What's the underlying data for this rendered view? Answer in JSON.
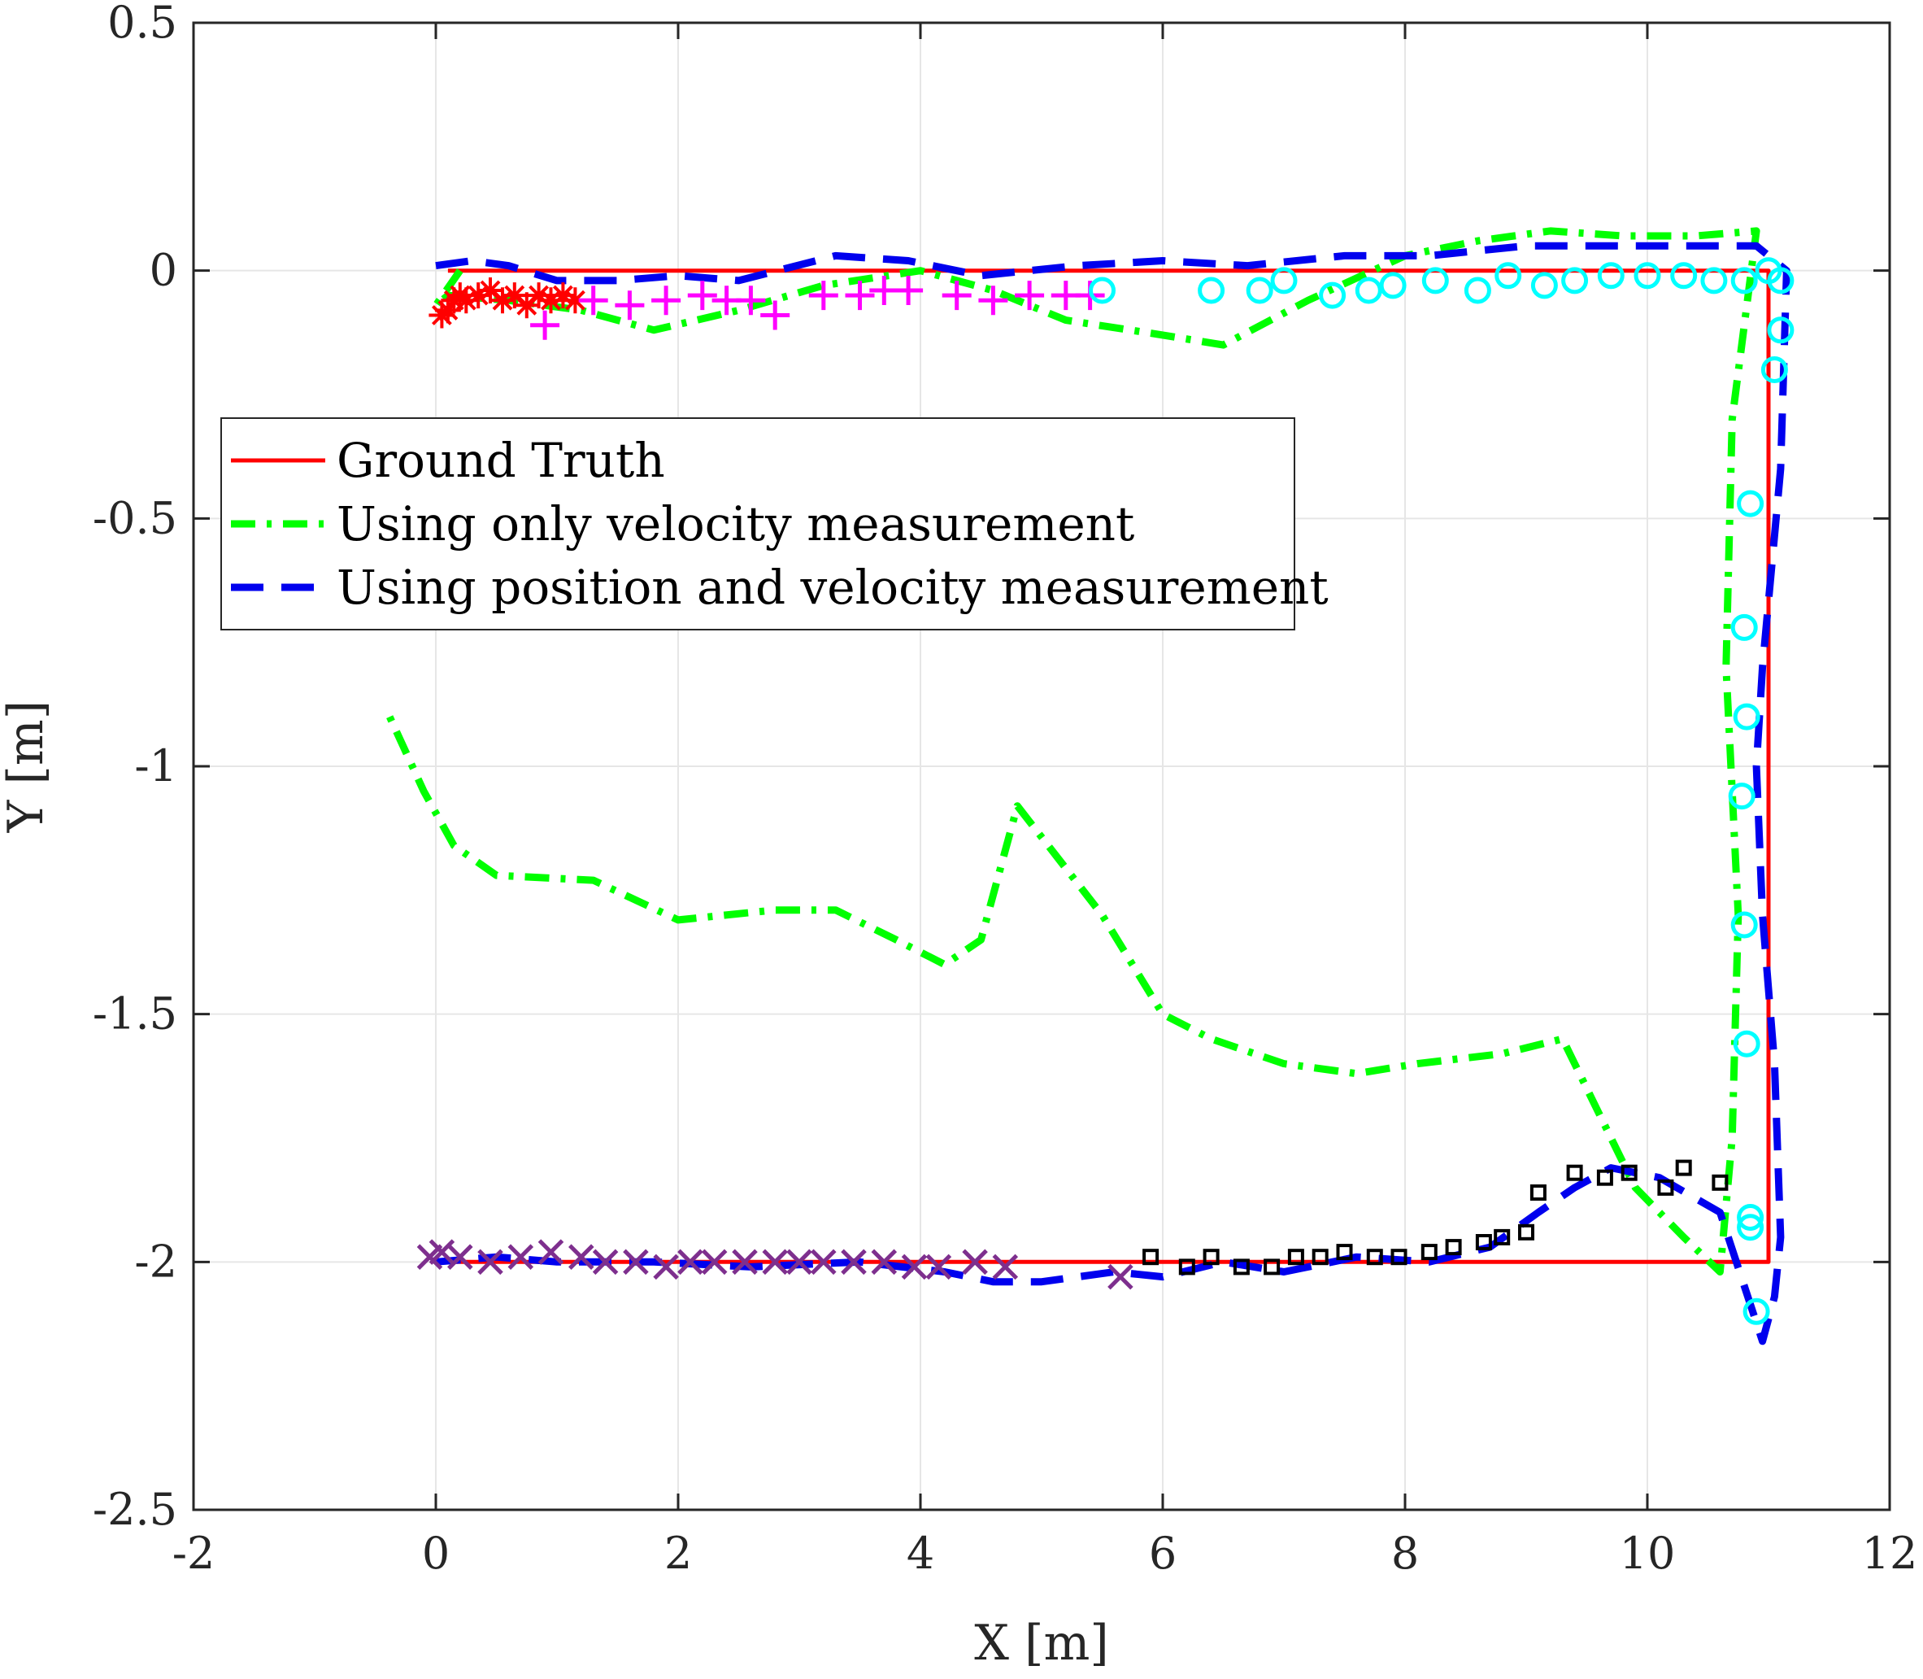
{
  "chart_data": {
    "type": "line",
    "title": "",
    "xlabel": "X [m]",
    "ylabel": "Y [m]",
    "xlim": [
      -2,
      12
    ],
    "ylim": [
      -2.5,
      0.5
    ],
    "xticks": [
      -2,
      0,
      2,
      4,
      6,
      8,
      10,
      12
    ],
    "yticks": [
      -2.5,
      -2,
      -1.5,
      -1,
      -0.5,
      0,
      0.5
    ],
    "xtick_labels": [
      "-2",
      "0",
      "2",
      "4",
      "6",
      "8",
      "10",
      "12"
    ],
    "ytick_labels": [
      "-2.5",
      "-2",
      "-1.5",
      "-1",
      "-0.5",
      "0",
      "0.5"
    ],
    "grid": true,
    "legend_position": "upper-left",
    "series": [
      {
        "name": "Ground Truth",
        "color": "#ff0000",
        "style": "solid",
        "x": [
          0.1,
          11.0,
          11.0,
          4.7,
          0.1
        ],
        "y": [
          0.0,
          0.0,
          -2.0,
          -2.0,
          -2.0
        ]
      },
      {
        "name": "Using only velocity measurement",
        "color": "#00ff00",
        "style": "dashdot",
        "x": [
          0.2,
          0.0,
          0.1,
          0.6,
          1.2,
          1.8,
          2.5,
          3.2,
          4.0,
          4.6,
          5.2,
          6.0,
          6.5,
          7.2,
          8.0,
          8.6,
          9.2,
          9.8,
          10.4,
          10.9,
          10.7,
          10.65,
          10.75,
          10.7,
          10.6,
          10.3,
          9.9,
          9.3,
          8.8,
          8.1,
          7.6,
          7.0,
          6.4,
          6.0,
          5.5,
          4.8,
          4.5,
          4.2,
          3.8,
          3.3,
          2.8,
          2.0,
          1.3,
          0.5,
          0.15,
          -0.1,
          -0.4
        ],
        "y": [
          0.0,
          -0.07,
          -0.05,
          -0.06,
          -0.08,
          -0.12,
          -0.08,
          -0.03,
          0.0,
          -0.04,
          -0.1,
          -0.13,
          -0.15,
          -0.06,
          0.03,
          0.06,
          0.08,
          0.07,
          0.07,
          0.08,
          -0.3,
          -0.8,
          -1.3,
          -1.75,
          -2.02,
          -1.95,
          -1.85,
          -1.55,
          -1.58,
          -1.6,
          -1.62,
          -1.6,
          -1.55,
          -1.5,
          -1.3,
          -1.08,
          -1.35,
          -1.4,
          -1.35,
          -1.29,
          -1.29,
          -1.31,
          -1.23,
          -1.22,
          -1.16,
          -1.05,
          -0.89
        ]
      },
      {
        "name": "Using position and velocity measurement",
        "color": "#0000ee",
        "style": "dashed",
        "x": [
          0.0,
          0.3,
          0.6,
          1.0,
          1.5,
          2.0,
          2.5,
          3.3,
          3.9,
          4.5,
          5.3,
          6.0,
          6.7,
          7.5,
          8.2,
          9.0,
          9.7,
          10.3,
          10.9,
          11.15,
          11.1,
          10.95,
          10.9,
          10.95,
          11.05,
          11.1,
          11.05,
          10.95,
          10.6,
          10.1,
          9.7,
          9.4,
          9.1,
          8.7,
          8.2,
          7.6,
          7.0,
          6.5,
          6.0,
          5.6,
          5.0,
          4.6,
          4.2,
          3.5,
          2.6,
          1.8,
          1.0,
          0.5,
          0.0
        ],
        "y": [
          0.01,
          0.02,
          0.01,
          -0.02,
          -0.02,
          -0.01,
          -0.02,
          0.03,
          0.02,
          -0.01,
          0.01,
          0.02,
          0.01,
          0.03,
          0.03,
          0.05,
          0.05,
          0.05,
          0.05,
          0.0,
          -0.4,
          -0.8,
          -1.0,
          -1.3,
          -1.6,
          -1.95,
          -2.07,
          -2.16,
          -1.9,
          -1.83,
          -1.81,
          -1.85,
          -1.9,
          -1.97,
          -2.0,
          -1.99,
          -2.02,
          -2.0,
          -2.03,
          -2.02,
          -2.04,
          -2.04,
          -2.02,
          -2.0,
          -2.01,
          -2.0,
          -2.0,
          -1.99,
          -2.0
        ]
      },
      {
        "name": "",
        "color": "#ff0000",
        "marker": "asterisk",
        "x": [
          0.05,
          0.1,
          0.15,
          0.2,
          0.25,
          0.35,
          0.45,
          0.55,
          0.65,
          0.75,
          0.85,
          0.95,
          1.05,
          1.15
        ],
        "y": [
          -0.09,
          -0.08,
          -0.06,
          -0.05,
          -0.06,
          -0.05,
          -0.04,
          -0.06,
          -0.05,
          -0.07,
          -0.05,
          -0.06,
          -0.05,
          -0.06
        ]
      },
      {
        "name": "",
        "color": "#ff00ff",
        "marker": "plus",
        "x": [
          0.9,
          1.3,
          1.6,
          1.9,
          2.2,
          2.4,
          2.6,
          2.8,
          3.2,
          3.5,
          3.7,
          3.9,
          4.3,
          4.6,
          4.9,
          5.2,
          5.4
        ],
        "y": [
          -0.11,
          -0.06,
          -0.07,
          -0.06,
          -0.05,
          -0.06,
          -0.06,
          -0.09,
          -0.05,
          -0.05,
          -0.04,
          -0.04,
          -0.05,
          -0.06,
          -0.05,
          -0.05,
          -0.05
        ]
      },
      {
        "name": "",
        "color": "#00ffff",
        "marker": "circle",
        "x": [
          5.5,
          6.4,
          6.8,
          7.0,
          7.4,
          7.7,
          7.9,
          8.25,
          8.6,
          8.85,
          9.15,
          9.4,
          9.7,
          10.0,
          10.3,
          10.55,
          10.8,
          11.0,
          11.1,
          11.05,
          11.1,
          10.85,
          10.8,
          10.82,
          10.78,
          10.8,
          10.82,
          10.85,
          10.85,
          10.9
        ],
        "y": [
          -0.04,
          -0.04,
          -0.04,
          -0.02,
          -0.05,
          -0.04,
          -0.03,
          -0.02,
          -0.04,
          -0.01,
          -0.03,
          -0.02,
          -0.01,
          -0.01,
          -0.01,
          -0.02,
          -0.02,
          0.0,
          -0.02,
          -0.2,
          -0.12,
          -0.47,
          -0.72,
          -0.9,
          -1.06,
          -1.32,
          -1.56,
          -1.91,
          -1.93,
          -2.1
        ]
      },
      {
        "name": "",
        "color": "#000000",
        "marker": "square",
        "x": [
          5.9,
          6.2,
          6.4,
          6.65,
          6.9,
          7.1,
          7.3,
          7.5,
          7.75,
          7.95,
          8.2,
          8.4,
          8.65,
          8.8,
          9.0,
          9.1,
          9.4,
          9.65,
          9.85,
          10.15,
          10.3,
          10.6
        ],
        "y": [
          -1.99,
          -2.01,
          -1.99,
          -2.01,
          -2.01,
          -1.99,
          -1.99,
          -1.98,
          -1.99,
          -1.99,
          -1.98,
          -1.97,
          -1.96,
          -1.95,
          -1.94,
          -1.86,
          -1.82,
          -1.83,
          -1.82,
          -1.85,
          -1.81,
          -1.84
        ]
      },
      {
        "name": "",
        "color": "#7e2f8e",
        "marker": "x",
        "x": [
          -0.05,
          0.05,
          0.2,
          0.45,
          0.7,
          0.95,
          1.2,
          1.4,
          1.65,
          1.9,
          2.1,
          2.3,
          2.55,
          2.8,
          3.0,
          3.2,
          3.45,
          3.7,
          3.95,
          4.15,
          4.45,
          4.7,
          5.65
        ],
        "y": [
          -1.99,
          -1.98,
          -1.99,
          -2.0,
          -1.99,
          -1.98,
          -1.99,
          -2.0,
          -2.0,
          -2.01,
          -2.0,
          -2.0,
          -2.0,
          -2.0,
          -2.0,
          -2.0,
          -2.0,
          -2.0,
          -2.01,
          -2.01,
          -2.0,
          -2.01,
          -2.03
        ]
      }
    ]
  }
}
